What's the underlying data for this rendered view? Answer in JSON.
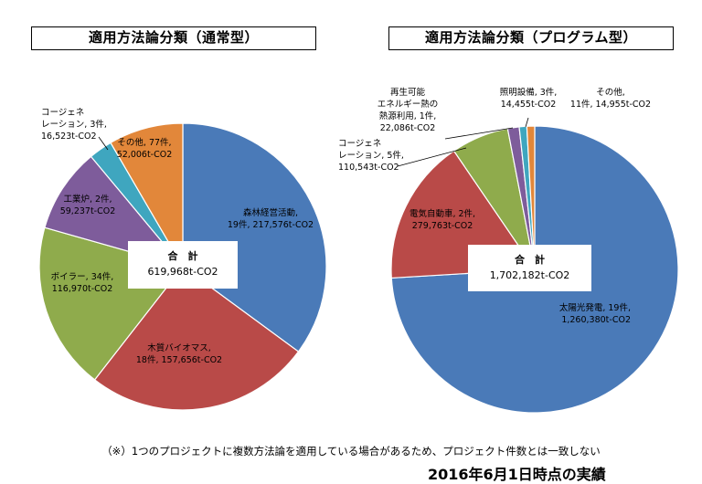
{
  "chart_data": [
    {
      "type": "pie",
      "title": "適用方法論分類（通常型）",
      "start_deg": 0,
      "direction": "clockwise",
      "slices": [
        {
          "line1": "森林経営活動,",
          "line2": "19件, 217,576t-CO2",
          "count": 19,
          "value": 217576,
          "color": "#4a7ab8"
        },
        {
          "line1": "木質バイオマス,",
          "line2": "18件, 157,656t-CO2",
          "count": 18,
          "value": 157656,
          "color": "#b94a48"
        },
        {
          "line1": "ボイラー, 34件,",
          "line2": "116,970t-CO2",
          "count": 34,
          "value": 116970,
          "color": "#8fab4c"
        },
        {
          "line1": "工業炉, 2件,",
          "line2": "59,237t-CO2",
          "count": 2,
          "value": 59237,
          "color": "#7e5c9b"
        },
        {
          "line1": "コージェネ",
          "line2": "レーション, 3件,",
          "line3": "16,523t-CO2",
          "count": 3,
          "value": 16523,
          "color": "#3fa6bf"
        },
        {
          "line1": "その他, 77件,",
          "line2": "52,006t-CO2",
          "count": 77,
          "value": 52006,
          "color": "#e2873a"
        }
      ],
      "total_label": "合　計",
      "total_value": "619,968t-CO2"
    },
    {
      "type": "pie",
      "title": "適用方法論分類（プログラム型）",
      "start_deg": 0,
      "direction": "clockwise",
      "slices": [
        {
          "line1": "太陽光発電, 19件,",
          "line2": "1,260,380t-CO2",
          "count": 19,
          "value": 1260380,
          "color": "#4a7ab8"
        },
        {
          "line1": "電気自動車, 2件,",
          "line2": "279,763t-CO2",
          "count": 2,
          "value": 279763,
          "color": "#b94a48"
        },
        {
          "line1": "コージェネ",
          "line2": "レーション, 5件,",
          "line3": "110,543t-CO2",
          "count": 5,
          "value": 110543,
          "color": "#8fab4c"
        },
        {
          "line1": "再生可能",
          "line2": "エネルギー熱の",
          "line3": "熱源利用, 1件,",
          "line4": "22,086t-CO2",
          "count": 1,
          "value": 22086,
          "color": "#7e5c9b"
        },
        {
          "line1": "照明設備, 3件,",
          "line2": "14,455t-CO2",
          "count": 3,
          "value": 14455,
          "color": "#3fa6bf"
        },
        {
          "line1": "その他,",
          "line2": "11件, 14,955t-CO2",
          "count": 11,
          "value": 14955,
          "color": "#e2873a"
        }
      ],
      "total_label": "合　計",
      "total_value": "1,702,182t-CO2"
    }
  ],
  "footnote": "（※）1つのプロジェクトに複数方法論を適用している場合があるため、プロジェクト件数とは一致しない",
  "date_note": "2016年6月1日時点の実績"
}
